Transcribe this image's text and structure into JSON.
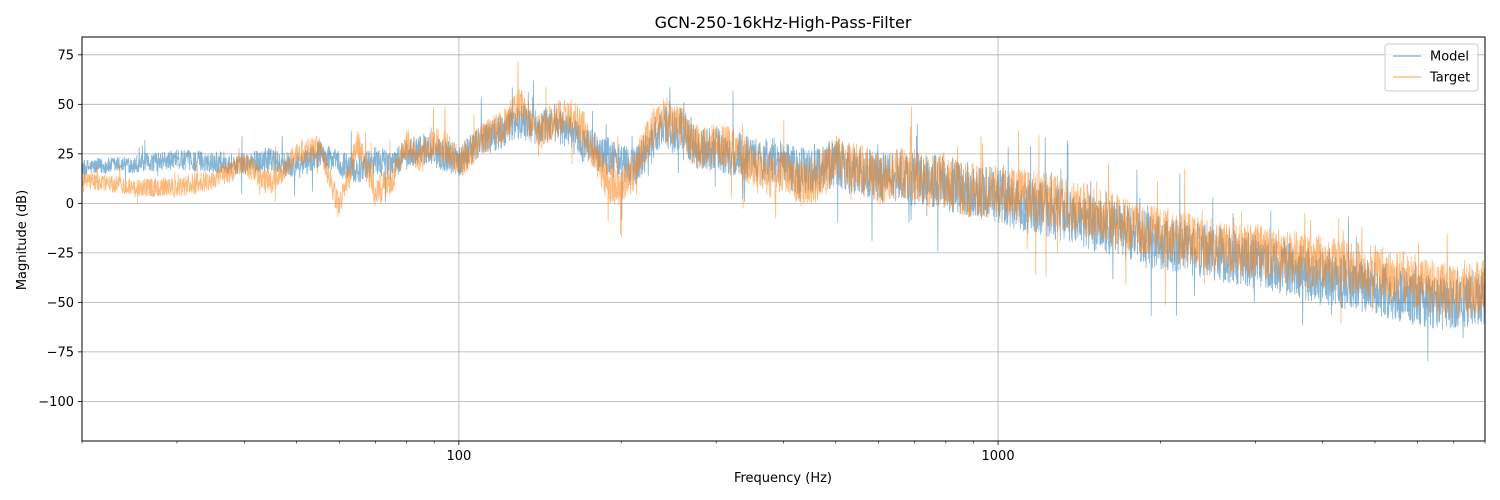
{
  "chart_data": {
    "type": "line",
    "title": "GCN-250-16kHz-High-Pass-Filter",
    "xlabel": "Frequency (Hz)",
    "ylabel": "Magnitude (dB)",
    "xscale": "log",
    "xlim": [
      20,
      8000
    ],
    "ylim": [
      -120,
      84
    ],
    "grid": true,
    "legend_position": "top-right",
    "x_ticks": [
      {
        "value": 100,
        "label": "100"
      },
      {
        "value": 1000,
        "label": "1000"
      }
    ],
    "y_ticks": [
      {
        "value": 75,
        "label": "75"
      },
      {
        "value": 50,
        "label": "50"
      },
      {
        "value": 25,
        "label": "25"
      },
      {
        "value": 0,
        "label": "0"
      },
      {
        "value": -25,
        "label": "−25"
      },
      {
        "value": -50,
        "label": "−50"
      },
      {
        "value": -75,
        "label": "−75"
      },
      {
        "value": -100,
        "label": "−100"
      }
    ],
    "series": [
      {
        "name": "Model",
        "color": "#1f77b4",
        "x": [
          20,
          25,
          30,
          35,
          40,
          45,
          50,
          55,
          60,
          65,
          70,
          75,
          80,
          85,
          90,
          95,
          100,
          110,
          120,
          130,
          140,
          150,
          160,
          170,
          180,
          190,
          200,
          210,
          220,
          230,
          240,
          250,
          260,
          270,
          280,
          300,
          320,
          340,
          360,
          380,
          400,
          430,
          460,
          500,
          550,
          600,
          650,
          700,
          750,
          800,
          850,
          900,
          1000,
          1100,
          1200,
          1300,
          1400,
          1500,
          1600,
          1700,
          1800,
          2000,
          2200,
          2400,
          2600,
          2800,
          3000,
          3300,
          3600,
          4000,
          4400,
          4800,
          5200,
          5600,
          6000,
          6500,
          7000,
          7500,
          8000
        ],
        "y": [
          18,
          20,
          22,
          21,
          20,
          22,
          18,
          25,
          20,
          17,
          22,
          19,
          25,
          28,
          26,
          24,
          22,
          32,
          36,
          42,
          38,
          40,
          36,
          30,
          26,
          24,
          20,
          18,
          25,
          32,
          40,
          35,
          38,
          30,
          26,
          28,
          25,
          24,
          22,
          22,
          20,
          16,
          18,
          20,
          16,
          14,
          14,
          12,
          12,
          10,
          8,
          6,
          4,
          0,
          -2,
          -5,
          -8,
          -10,
          -12,
          -14,
          -16,
          -20,
          -22,
          -24,
          -26,
          -28,
          -30,
          -32,
          -34,
          -38,
          -40,
          -42,
          -44,
          -46,
          -48,
          -50,
          -52,
          -50,
          -48
        ]
      },
      {
        "name": "Target",
        "color": "#ff7f0e",
        "x": [
          20,
          25,
          30,
          35,
          40,
          45,
          50,
          55,
          60,
          65,
          70,
          75,
          80,
          85,
          90,
          95,
          100,
          110,
          120,
          130,
          140,
          150,
          160,
          170,
          180,
          190,
          200,
          210,
          220,
          230,
          240,
          250,
          260,
          270,
          280,
          300,
          320,
          340,
          360,
          380,
          400,
          430,
          460,
          500,
          550,
          600,
          650,
          700,
          750,
          800,
          850,
          900,
          1000,
          1100,
          1200,
          1300,
          1400,
          1500,
          1600,
          1700,
          1800,
          2000,
          2200,
          2400,
          2600,
          2800,
          3000,
          3300,
          3600,
          4000,
          4400,
          4800,
          5200,
          5600,
          6000,
          6500,
          7000,
          7500,
          8000
        ],
        "y": [
          12,
          8,
          8,
          12,
          20,
          10,
          25,
          28,
          -2,
          30,
          5,
          12,
          30,
          22,
          30,
          28,
          20,
          32,
          38,
          50,
          35,
          42,
          45,
          38,
          22,
          10,
          8,
          15,
          28,
          38,
          45,
          40,
          38,
          30,
          28,
          30,
          28,
          22,
          18,
          14,
          15,
          10,
          12,
          22,
          18,
          12,
          16,
          14,
          10,
          12,
          8,
          6,
          6,
          4,
          2,
          0,
          -2,
          -5,
          -8,
          -10,
          -12,
          -15,
          -18,
          -20,
          -22,
          -24,
          -24,
          -26,
          -28,
          -30,
          -32,
          -34,
          -36,
          -38,
          -40,
          -42,
          -45,
          -44,
          -42
        ]
      }
    ]
  }
}
